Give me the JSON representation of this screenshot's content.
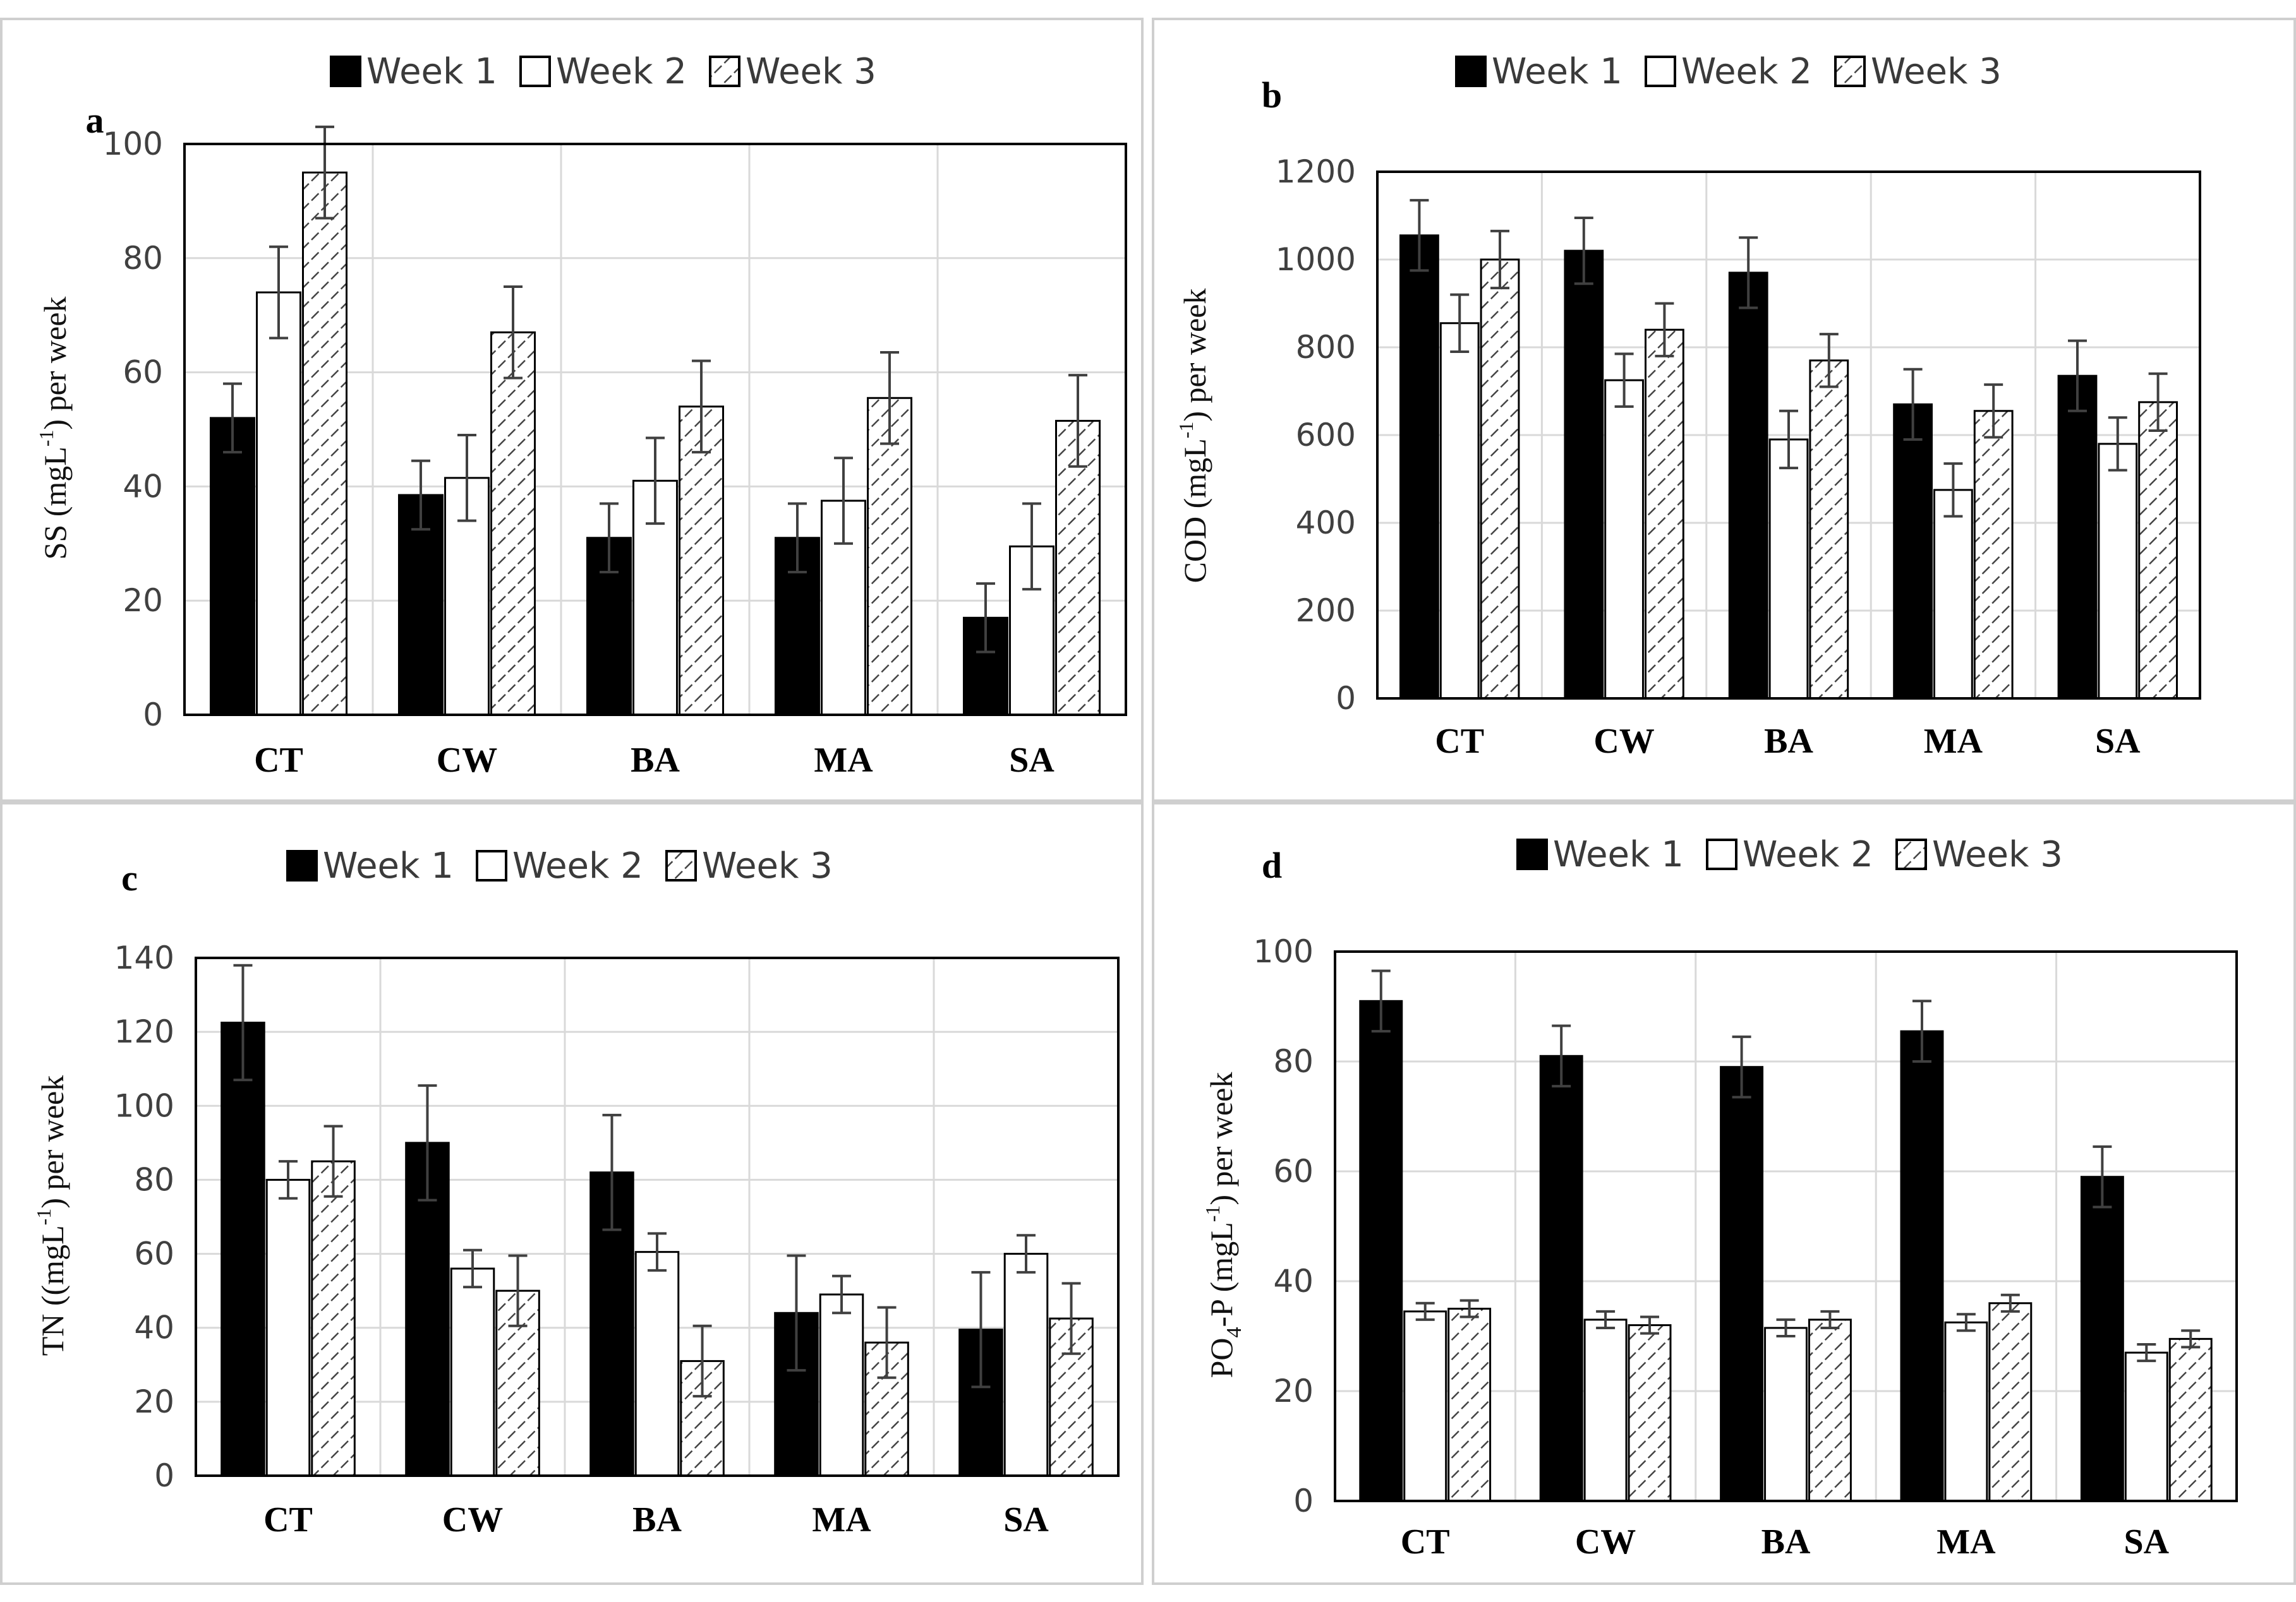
{
  "colors": {
    "week1": "#000000",
    "week2": "#ffffff",
    "week3_hatch": "#444444",
    "grid": "#d9d9d9",
    "axis": "#000000",
    "error_bar": "#404040",
    "panel_border": "#cfcfcf"
  },
  "chart_data": [
    {
      "panel": "a",
      "type": "bar",
      "title": "",
      "ylabel_main": "SS (mgL",
      "ylabel_sup": "-1",
      "ylabel_tail": ") per week",
      "xlabel": "",
      "legend": [
        "Week 1",
        "Week 2",
        "Week 3"
      ],
      "legend_position": "top",
      "categories": [
        "CT",
        "CW",
        "BA",
        "MA",
        "SA"
      ],
      "ylim": [
        0,
        100
      ],
      "yticks": [
        0,
        20,
        40,
        60,
        80,
        100
      ],
      "series": [
        {
          "name": "Week 1",
          "values": [
            52,
            38.5,
            31,
            31,
            17
          ],
          "errors": [
            6,
            6,
            6,
            6,
            6
          ]
        },
        {
          "name": "Week 2",
          "values": [
            74,
            41.5,
            41,
            37.5,
            29.5
          ],
          "errors": [
            8,
            7.5,
            7.5,
            7.5,
            7.5
          ]
        },
        {
          "name": "Week 3",
          "values": [
            95,
            67,
            54,
            55.5,
            51.5
          ],
          "errors": [
            8,
            8,
            8,
            8,
            8
          ]
        }
      ]
    },
    {
      "panel": "b",
      "type": "bar",
      "title": "",
      "ylabel_main": "COD (mgL",
      "ylabel_sup": "-1",
      "ylabel_tail": ") per week",
      "xlabel": "",
      "legend": [
        "Week 1",
        "Week 2",
        "Week 3"
      ],
      "legend_position": "top",
      "categories": [
        "CT",
        "CW",
        "BA",
        "MA",
        "SA"
      ],
      "ylim": [
        0,
        1200
      ],
      "yticks": [
        0,
        200,
        400,
        600,
        800,
        1000,
        1200
      ],
      "series": [
        {
          "name": "Week 1",
          "values": [
            1055,
            1020,
            970,
            670,
            735
          ],
          "errors": [
            80,
            75,
            80,
            80,
            80
          ]
        },
        {
          "name": "Week 2",
          "values": [
            855,
            725,
            590,
            475,
            580
          ],
          "errors": [
            65,
            60,
            65,
            60,
            60
          ]
        },
        {
          "name": "Week 3",
          "values": [
            1000,
            840,
            770,
            655,
            675
          ],
          "errors": [
            65,
            60,
            60,
            60,
            65
          ]
        }
      ]
    },
    {
      "panel": "c",
      "type": "bar",
      "title": "",
      "ylabel_main": "TN  ((mgL",
      "ylabel_sup": "-1",
      "ylabel_tail": ") per week",
      "xlabel": "",
      "legend": [
        "Week 1",
        "Week 2",
        "Week 3"
      ],
      "legend_position": "top",
      "categories": [
        "CT",
        "CW",
        "BA",
        "MA",
        "SA"
      ],
      "ylim": [
        0,
        140
      ],
      "yticks": [
        0,
        20,
        40,
        60,
        80,
        100,
        120,
        140
      ],
      "series": [
        {
          "name": "Week 1",
          "values": [
            122.5,
            90,
            82,
            44,
            39.5
          ],
          "errors": [
            15.5,
            15.5,
            15.5,
            15.5,
            15.5
          ]
        },
        {
          "name": "Week 2",
          "values": [
            80,
            56,
            60.5,
            49,
            60
          ],
          "errors": [
            5,
            5,
            5,
            5,
            5
          ]
        },
        {
          "name": "Week 3",
          "values": [
            85,
            50,
            31,
            36,
            42.5
          ],
          "errors": [
            9.5,
            9.5,
            9.5,
            9.5,
            9.5
          ]
        }
      ]
    },
    {
      "panel": "d",
      "type": "bar",
      "title": "",
      "ylabel_main": "PO",
      "ylabel_sub": "4",
      "ylabel_mid": "-P   (mgL",
      "ylabel_sup": "-1",
      "ylabel_tail": ") per week",
      "xlabel": "",
      "legend": [
        "Week 1",
        "Week 2",
        "Week 3"
      ],
      "legend_position": "top",
      "categories": [
        "CT",
        "CW",
        "BA",
        "MA",
        "SA"
      ],
      "ylim": [
        0,
        100
      ],
      "yticks": [
        0,
        20,
        40,
        60,
        80,
        100
      ],
      "series": [
        {
          "name": "Week 1",
          "values": [
            91,
            81,
            79,
            85.5,
            59
          ],
          "errors": [
            5.5,
            5.5,
            5.5,
            5.5,
            5.5
          ]
        },
        {
          "name": "Week 2",
          "values": [
            34.5,
            33,
            31.5,
            32.5,
            27
          ],
          "errors": [
            1.5,
            1.5,
            1.5,
            1.5,
            1.5
          ]
        },
        {
          "name": "Week 3",
          "values": [
            35,
            32,
            33,
            36,
            29.5
          ],
          "errors": [
            1.5,
            1.5,
            1.5,
            1.5,
            1.5
          ]
        }
      ]
    }
  ]
}
